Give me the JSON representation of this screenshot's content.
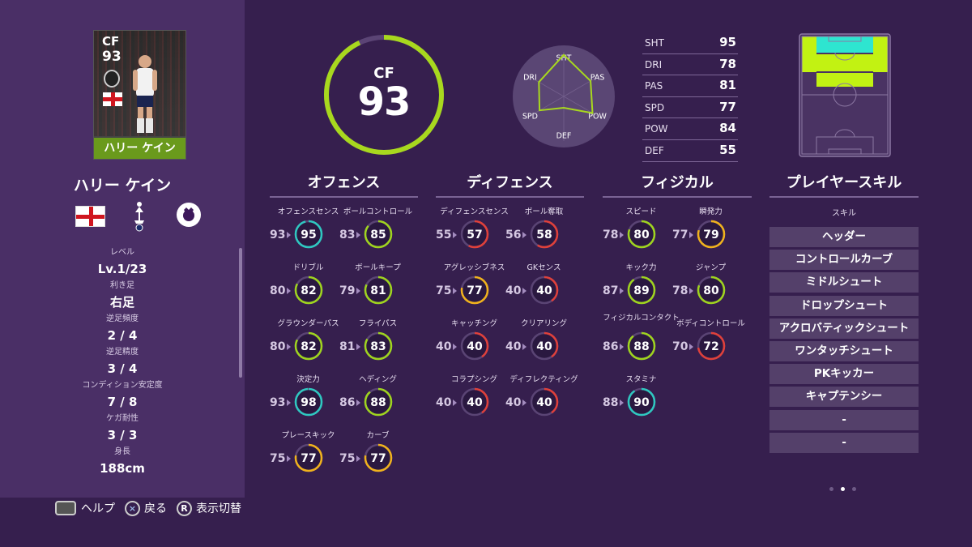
{
  "card": {
    "position": "CF",
    "overall": "93",
    "name": "ハリー ケイン"
  },
  "player_name": "ハリー ケイン",
  "info": [
    {
      "label": "レベル",
      "value": "Lv.1/23"
    },
    {
      "label": "利き足",
      "value": "右足"
    },
    {
      "label": "逆足頻度",
      "value": "2 / 4"
    },
    {
      "label": "逆足精度",
      "value": "3 / 4"
    },
    {
      "label": "コンディション安定度",
      "value": "7 / 8"
    },
    {
      "label": "ケガ耐性",
      "value": "3 / 3"
    },
    {
      "label": "身長",
      "value": "188cm"
    }
  ],
  "overall": {
    "position": "CF",
    "value": 93,
    "ring_fraction": 0.93
  },
  "radar": {
    "labels": [
      "SHT",
      "PAS",
      "POW",
      "DEF",
      "SPD",
      "DRI"
    ],
    "values": [
      95,
      81,
      84,
      55,
      77,
      78
    ]
  },
  "stats": [
    {
      "label": "SHT",
      "value": "95"
    },
    {
      "label": "DRI",
      "value": "78"
    },
    {
      "label": "PAS",
      "value": "81"
    },
    {
      "label": "SPD",
      "value": "77"
    },
    {
      "label": "POW",
      "value": "84"
    },
    {
      "label": "DEF",
      "value": "55"
    }
  ],
  "sections": {
    "offense": "オフェンス",
    "defense": "ディフェンス",
    "physical": "フィジカル",
    "skills": "プレイヤースキル"
  },
  "offense": [
    {
      "name": "オフェンスセンス",
      "base": 93,
      "value": 95
    },
    {
      "name": "ボールコントロール",
      "base": 83,
      "value": 85
    },
    {
      "name": "ドリブル",
      "base": 80,
      "value": 82
    },
    {
      "name": "ボールキープ",
      "base": 79,
      "value": 81
    },
    {
      "name": "グラウンダーパス",
      "base": 80,
      "value": 82
    },
    {
      "name": "フライパス",
      "base": 81,
      "value": 83
    },
    {
      "name": "決定力",
      "base": 93,
      "value": 98
    },
    {
      "name": "ヘディング",
      "base": 86,
      "value": 88
    },
    {
      "name": "プレースキック",
      "base": 75,
      "value": 77
    },
    {
      "name": "カーブ",
      "base": 75,
      "value": 77
    }
  ],
  "defense": [
    {
      "name": "ディフェンスセンス",
      "base": 55,
      "value": 57
    },
    {
      "name": "ボール奪取",
      "base": 56,
      "value": 58
    },
    {
      "name": "アグレッシブネス",
      "base": 75,
      "value": 77
    },
    {
      "name": "GKセンス",
      "base": 40,
      "value": 40
    },
    {
      "name": "キャッチング",
      "base": 40,
      "value": 40
    },
    {
      "name": "クリアリング",
      "base": 40,
      "value": 40
    },
    {
      "name": "コラプシング",
      "base": 40,
      "value": 40
    },
    {
      "name": "ディフレクティング",
      "base": 40,
      "value": 40
    }
  ],
  "physical": [
    {
      "name": "スピード",
      "base": 78,
      "value": 80
    },
    {
      "name": "瞬発力",
      "base": 77,
      "value": 79
    },
    {
      "name": "キック力",
      "base": 87,
      "value": 89
    },
    {
      "name": "ジャンプ",
      "base": 78,
      "value": 80
    },
    {
      "name": "フィジカルコンタクト",
      "base": 86,
      "value": 88
    },
    {
      "name": "ボディコントロール",
      "base": 70,
      "value": 72
    },
    {
      "name": "スタミナ",
      "base": 88,
      "value": 90
    }
  ],
  "skills_label": "スキル",
  "skills": [
    "ヘッダー",
    "コントロールカーブ",
    "ミドルシュート",
    "ドロップシュート",
    "アクロバティックシュート",
    "ワンタッチシュート",
    "PKキッカー",
    "キャプテンシー",
    "-",
    "-"
  ],
  "footer": {
    "help": "ヘルプ",
    "back_button": "×",
    "back": "戻る",
    "toggle_button": "R",
    "toggle": "表示切替"
  },
  "colors": {
    "ring_cyan": "#2ec8c0",
    "ring_green": "#9fd41e",
    "ring_yellow": "#f0b21c",
    "ring_red": "#e0403a",
    "accent_green": "#a8d81e"
  }
}
